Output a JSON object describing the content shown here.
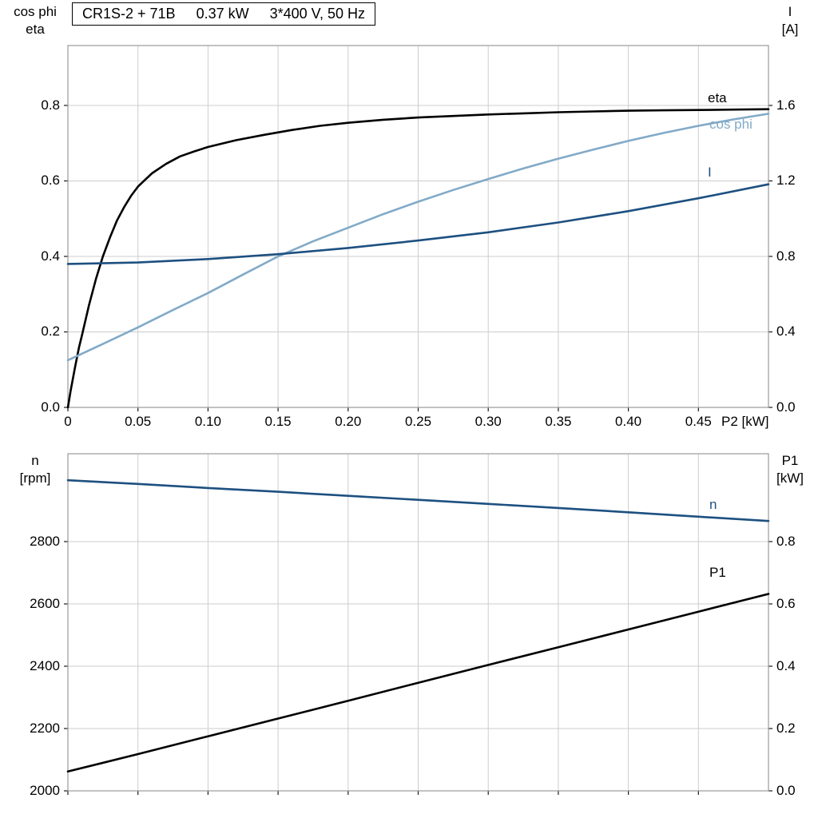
{
  "header": {
    "model": "CR1S-2 + 71B",
    "power": "0.37 kW",
    "supply": "3*400 V, 50 Hz"
  },
  "colors": {
    "black_curve": "#000000",
    "dark_blue_curve": "#1d5080",
    "light_blue_curve": "#82aac8"
  },
  "chart_data": [
    {
      "id": "top",
      "type": "line",
      "x_label": "P2 [kW]",
      "xlim": [
        0,
        0.5
      ],
      "x_ticks": [
        0,
        0.05,
        0.1,
        0.15,
        0.2,
        0.25,
        0.3,
        0.35,
        0.4,
        0.45
      ],
      "x_tick_labels": [
        "0",
        "0.05",
        "0.10",
        "0.15",
        "0.20",
        "0.25",
        "0.30",
        "0.35",
        "0.40",
        "0.45"
      ],
      "left_axis": {
        "title_lines": [
          "cos phi",
          "eta"
        ],
        "lim": [
          0,
          0.9587
        ],
        "ticks": [
          0.0,
          0.2,
          0.4,
          0.6,
          0.8
        ],
        "tick_labels": [
          "0.0",
          "0.2",
          "0.4",
          "0.6",
          "0.8"
        ]
      },
      "right_axis": {
        "title_lines": [
          "I",
          "[A]"
        ],
        "lim": [
          0,
          1.9174
        ],
        "ticks": [
          0.0,
          0.4,
          0.8,
          1.2,
          1.6
        ],
        "tick_labels": [
          "0.0",
          "0.4",
          "0.8",
          "1.2",
          "1.6"
        ]
      },
      "series": [
        {
          "name": "eta",
          "axis": "left",
          "color": "#000000",
          "points": [
            [
              0,
              0
            ],
            [
              0.002,
              0.045
            ],
            [
              0.005,
              0.105
            ],
            [
              0.008,
              0.16
            ],
            [
              0.01,
              0.19
            ],
            [
              0.015,
              0.27
            ],
            [
              0.02,
              0.34
            ],
            [
              0.025,
              0.4
            ],
            [
              0.03,
              0.45
            ],
            [
              0.035,
              0.495
            ],
            [
              0.04,
              0.53
            ],
            [
              0.045,
              0.56
            ],
            [
              0.05,
              0.585
            ],
            [
              0.06,
              0.62
            ],
            [
              0.07,
              0.645
            ],
            [
              0.08,
              0.665
            ],
            [
              0.09,
              0.678
            ],
            [
              0.1,
              0.69
            ],
            [
              0.12,
              0.708
            ],
            [
              0.14,
              0.722
            ],
            [
              0.16,
              0.735
            ],
            [
              0.18,
              0.746
            ],
            [
              0.2,
              0.754
            ],
            [
              0.225,
              0.762
            ],
            [
              0.25,
              0.768
            ],
            [
              0.275,
              0.772
            ],
            [
              0.3,
              0.776
            ],
            [
              0.325,
              0.779
            ],
            [
              0.35,
              0.782
            ],
            [
              0.375,
              0.784
            ],
            [
              0.4,
              0.786
            ],
            [
              0.425,
              0.787
            ],
            [
              0.45,
              0.788
            ],
            [
              0.475,
              0.789
            ],
            [
              0.5,
              0.79
            ]
          ]
        },
        {
          "name": "cos phi",
          "axis": "left",
          "color": "#82aac8",
          "points": [
            [
              0,
              0.125
            ],
            [
              0.025,
              0.168
            ],
            [
              0.05,
              0.212
            ],
            [
              0.075,
              0.258
            ],
            [
              0.1,
              0.303
            ],
            [
              0.125,
              0.352
            ],
            [
              0.15,
              0.4
            ],
            [
              0.175,
              0.44
            ],
            [
              0.2,
              0.476
            ],
            [
              0.225,
              0.512
            ],
            [
              0.25,
              0.545
            ],
            [
              0.275,
              0.576
            ],
            [
              0.3,
              0.605
            ],
            [
              0.325,
              0.633
            ],
            [
              0.35,
              0.659
            ],
            [
              0.375,
              0.683
            ],
            [
              0.4,
              0.706
            ],
            [
              0.425,
              0.727
            ],
            [
              0.45,
              0.746
            ],
            [
              0.475,
              0.763
            ],
            [
              0.5,
              0.778
            ]
          ]
        },
        {
          "name": "I",
          "axis": "right",
          "color": "#1d5080",
          "points": [
            [
              0,
              0.76
            ],
            [
              0.05,
              0.768
            ],
            [
              0.1,
              0.786
            ],
            [
              0.15,
              0.812
            ],
            [
              0.2,
              0.845
            ],
            [
              0.25,
              0.884
            ],
            [
              0.3,
              0.928
            ],
            [
              0.35,
              0.98
            ],
            [
              0.4,
              1.04
            ],
            [
              0.45,
              1.108
            ],
            [
              0.5,
              1.182
            ]
          ]
        }
      ]
    },
    {
      "id": "bottom",
      "type": "line",
      "x_label": "",
      "xlim": [
        0,
        0.5
      ],
      "x_ticks": [
        0,
        0.05,
        0.1,
        0.15,
        0.2,
        0.25,
        0.3,
        0.35,
        0.4,
        0.45
      ],
      "x_tick_labels": [
        "",
        "",
        "",
        "",
        "",
        "",
        "",
        "",
        "",
        ""
      ],
      "left_axis": {
        "title_lines": [
          "n",
          "[rpm]"
        ],
        "lim": [
          2000,
          3082
        ],
        "ticks": [
          2000,
          2200,
          2400,
          2600,
          2800
        ],
        "tick_labels": [
          "2000",
          "2200",
          "2400",
          "2600",
          "2800"
        ]
      },
      "right_axis": {
        "title_lines": [
          "P1",
          "[kW]"
        ],
        "lim": [
          0,
          1.082
        ],
        "ticks": [
          0.0,
          0.2,
          0.4,
          0.6,
          0.8
        ],
        "tick_labels": [
          "0.0",
          "0.2",
          "0.4",
          "0.6",
          "0.8"
        ]
      },
      "series": [
        {
          "name": "n",
          "axis": "left",
          "color": "#1d5080",
          "points": [
            [
              0,
              2997
            ],
            [
              0.05,
              2985
            ],
            [
              0.1,
              2972
            ],
            [
              0.15,
              2960
            ],
            [
              0.2,
              2947
            ],
            [
              0.25,
              2934
            ],
            [
              0.3,
              2921
            ],
            [
              0.35,
              2908
            ],
            [
              0.4,
              2894
            ],
            [
              0.45,
              2880
            ],
            [
              0.5,
              2866
            ]
          ]
        },
        {
          "name": "P1",
          "axis": "right",
          "color": "#000000",
          "points": [
            [
              0,
              0.062
            ],
            [
              0.05,
              0.118
            ],
            [
              0.1,
              0.175
            ],
            [
              0.15,
              0.232
            ],
            [
              0.2,
              0.289
            ],
            [
              0.25,
              0.347
            ],
            [
              0.3,
              0.404
            ],
            [
              0.35,
              0.461
            ],
            [
              0.4,
              0.518
            ],
            [
              0.45,
              0.575
            ],
            [
              0.5,
              0.632
            ]
          ]
        }
      ]
    }
  ]
}
